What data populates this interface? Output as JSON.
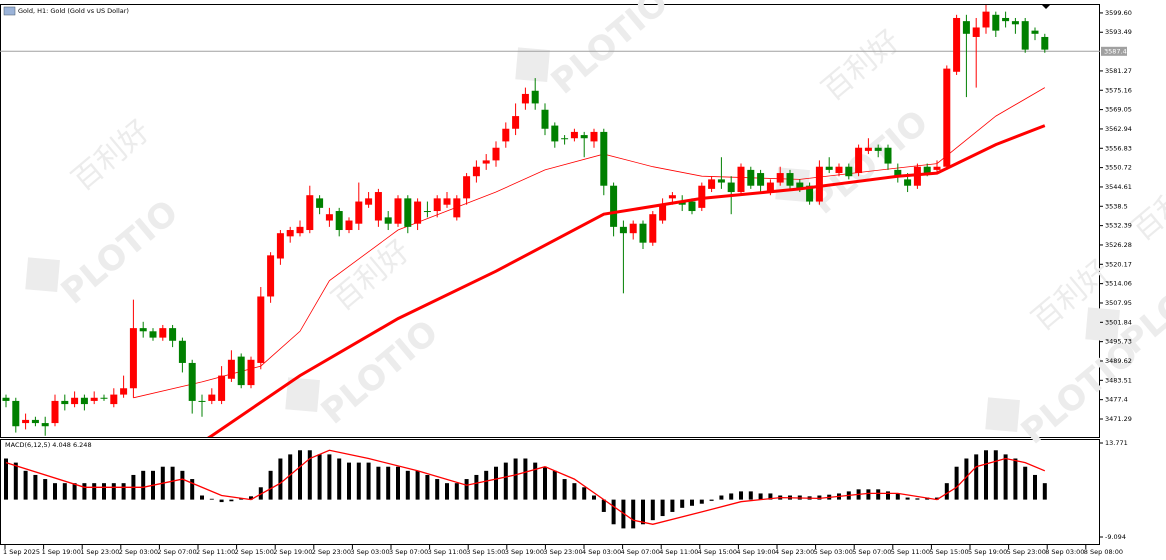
{
  "chart_data": {
    "type": "candlestick",
    "title": "Gold, H1:  Gold (Gold vs US Dollar)",
    "watermark": {
      "brand": "PLOTIO",
      "cn": "百利好"
    },
    "current_price": {
      "value": 3587.47,
      "label": "3587.47"
    },
    "up_color": "#ff0000",
    "down_color": "#008000",
    "ylim": [
      3465.6,
      3602.1
    ],
    "yticks": [
      {
        "value": 3599.6,
        "label": "3599.60"
      },
      3593.49,
      3581.27,
      3575.16,
      3569.05,
      3562.94,
      3556.83,
      3550.72,
      3544.61,
      3538.5,
      3532.39,
      3526.28,
      3520.17,
      3514.06,
      3507.95,
      3501.84,
      3495.73,
      3489.62,
      3483.51,
      3477.4,
      3471.29
    ],
    "time_labels": [
      "1 Sep 2025",
      "1 Sep 19:00",
      "1 Sep 23:00",
      "2 Sep 03:00",
      "2 Sep 07:00",
      "2 Sep 11:00",
      "2 Sep 15:00",
      "2 Sep 19:00",
      "2 Sep 23:00",
      "3 Sep 03:00",
      "3 Sep 07:00",
      "3 Sep 11:00",
      "3 Sep 15:00",
      "3 Sep 19:00",
      "3 Sep 23:00",
      "4 Sep 03:00",
      "4 Sep 07:00",
      "4 Sep 11:00",
      "4 Sep 15:00",
      "4 Sep 19:00",
      "4 Sep 23:00",
      "5 Sep 03:00",
      "5 Sep 07:00",
      "5 Sep 11:00",
      "5 Sep 15:00",
      "5 Sep 19:00",
      "5 Sep 23:00",
      "8 Sep 03:00",
      "8 Sep 08:00"
    ],
    "open": [
      3478,
      3477,
      3470,
      3471,
      3470,
      3470,
      3477,
      3476,
      3478,
      3477,
      3478,
      3476,
      3479,
      3481,
      3500,
      3499,
      3497,
      3500,
      3496,
      3489,
      3477,
      3477,
      3477,
      3484,
      3491,
      3482,
      3489,
      3510,
      3522,
      3529,
      3530,
      3531,
      3541,
      3534,
      3537,
      3531,
      3533,
      3539,
      3534,
      3535,
      3533,
      3541,
      3533,
      3537,
      3537,
      3539,
      3535,
      3541,
      3548,
      3552,
      3553,
      3559,
      3563,
      3571,
      3575,
      3569,
      3564,
      3560,
      3560,
      3561,
      3559,
      3562,
      3545,
      3532,
      3530,
      3533,
      3527,
      3534,
      3541,
      3540,
      3540,
      3538,
      3544,
      3547,
      3546,
      3543,
      3550,
      3549,
      3543,
      3546,
      3549,
      3546,
      3545,
      3540,
      3551,
      3549,
      3551,
      3549,
      3556,
      3557,
      3557,
      3550,
      3547,
      3545,
      3551,
      3550,
      3551,
      3581,
      3597,
      3592,
      3595,
      3599,
      3598,
      3597,
      3597,
      3594,
      3592
    ],
    "high": [
      3479,
      3478,
      3473,
      3472,
      3472,
      3479,
      3479,
      3480,
      3479,
      3480,
      3479,
      3481,
      3485,
      3509,
      3502,
      3500,
      3501,
      3501,
      3497,
      3490,
      3479,
      3481,
      3488,
      3493,
      3492,
      3491,
      3513,
      3524,
      3531,
      3532,
      3534,
      3545,
      3542,
      3538,
      3538,
      3535,
      3546,
      3543,
      3544,
      3537,
      3542,
      3542,
      3541,
      3540,
      3542,
      3543,
      3542,
      3549,
      3553,
      3555,
      3559,
      3565,
      3571,
      3576,
      3579,
      3571,
      3565,
      3561,
      3563,
      3562,
      3563,
      3563,
      3546,
      3534,
      3534,
      3534,
      3537,
      3541,
      3543,
      3542,
      3541,
      3546,
      3548,
      3554,
      3548,
      3552,
      3551,
      3550,
      3547,
      3551,
      3550,
      3547,
      3546,
      3553,
      3554,
      3552,
      3552,
      3558,
      3560,
      3558,
      3558,
      3552,
      3549,
      3552,
      3552,
      3553,
      3583,
      3599,
      3599,
      3598,
      3603,
      3600,
      3600,
      3598,
      3598,
      3595,
      3593
    ],
    "low": [
      3475,
      3467,
      3468,
      3469,
      3466,
      3469,
      3474,
      3475,
      3474,
      3476,
      3477,
      3475,
      3478,
      3478,
      3497,
      3496,
      3496,
      3494,
      3486,
      3473,
      3472,
      3476,
      3476,
      3483,
      3481,
      3481,
      3487,
      3508,
      3520,
      3527,
      3529,
      3530,
      3536,
      3532,
      3529,
      3530,
      3531,
      3538,
      3532,
      3531,
      3532,
      3530,
      3531,
      3535,
      3535,
      3538,
      3534,
      3539,
      3546,
      3550,
      3551,
      3557,
      3561,
      3569,
      3569,
      3561,
      3557,
      3558,
      3559,
      3554,
      3557,
      3542,
      3529,
      3511,
      3528,
      3525,
      3526,
      3533,
      3539,
      3537,
      3536,
      3537,
      3543,
      3544,
      3536,
      3542,
      3544,
      3543,
      3542,
      3545,
      3544,
      3543,
      3539,
      3539,
      3549,
      3548,
      3547,
      3548,
      3555,
      3554,
      3550,
      3546,
      3543,
      3544,
      3548,
      3549,
      3550,
      3580,
      3573,
      3576,
      3593,
      3592,
      3595,
      3593,
      3587,
      3591,
      3587
    ],
    "close": [
      3477,
      3469,
      3471,
      3470,
      3469,
      3477,
      3476,
      3478,
      3476,
      3478,
      3478,
      3479,
      3481,
      3500,
      3499,
      3497,
      3500,
      3496,
      3489,
      3477,
      3477,
      3479,
      3485,
      3490,
      3482,
      3490,
      3510,
      3523,
      3530,
      3531,
      3532,
      3542,
      3538,
      3536,
      3531,
      3534,
      3540,
      3541,
      3543,
      3533,
      3541,
      3532,
      3540,
      3537,
      3541,
      3541,
      3541,
      3548,
      3551,
      3553,
      3557,
      3563,
      3567,
      3574,
      3571,
      3563,
      3559,
      3560,
      3562,
      3560,
      3562,
      3545,
      3532,
      3530,
      3533,
      3527,
      3536,
      3539,
      3542,
      3539,
      3537,
      3545,
      3547,
      3546,
      3543,
      3551,
      3545,
      3545,
      3546,
      3549,
      3545,
      3544,
      3540,
      3551,
      3550,
      3551,
      3548,
      3557,
      3557,
      3556,
      3552,
      3548,
      3545,
      3551,
      3549,
      3551,
      3582,
      3598,
      3593,
      3595,
      3600,
      3594,
      3597,
      3596,
      3588,
      3593,
      3588
    ],
    "ma_slow": {
      "color": "#ff0000",
      "x": [
        20,
        21,
        30,
        40,
        50,
        61,
        71,
        81,
        91,
        95,
        101,
        106
      ],
      "values": [
        3464,
        3466,
        3485,
        3503,
        3518,
        3536,
        3541,
        3544,
        3548,
        3549,
        3558,
        3564
      ]
    },
    "ma_fast": {
      "color": "#ff0000",
      "x": [
        13,
        20,
        26,
        30,
        33,
        40,
        50,
        55,
        61,
        66,
        71,
        81,
        91,
        95,
        101,
        106
      ],
      "values": [
        3478,
        3483,
        3488,
        3499,
        3515,
        3531,
        3543,
        3550,
        3555,
        3551,
        3548,
        3547,
        3550.6,
        3552,
        3567,
        3576
      ]
    },
    "macd": {
      "label": "MACD(6,12,5) 4.048 6.248",
      "ylim": [
        -11.04,
        14.5
      ],
      "yticks": [
        13.771,
        -9.094
      ],
      "color": "#000000",
      "signal_color": "#ff0000",
      "histogram": [
        10,
        9,
        7,
        6,
        5,
        4,
        4,
        4,
        4,
        4,
        4,
        4,
        4,
        6,
        7,
        7,
        8,
        8,
        7,
        5,
        1,
        0.2,
        -0.6,
        -0.4,
        0.3,
        0.8,
        3,
        7,
        10,
        11,
        12,
        12,
        11,
        11,
        10,
        9,
        9,
        9,
        8,
        8,
        8,
        7,
        7,
        6,
        5,
        4,
        4,
        5,
        6,
        7,
        8,
        9,
        10,
        10,
        9,
        8,
        7,
        5,
        4,
        3,
        1,
        -3,
        -6,
        -7,
        -7,
        -6,
        -5,
        -4,
        -3,
        -2,
        -1.5,
        -1,
        -0.3,
        1,
        1.5,
        2,
        2,
        1.5,
        1.5,
        1,
        1,
        1,
        0.8,
        1,
        1.2,
        1.5,
        2,
        2.5,
        2.5,
        2.5,
        2,
        1.5,
        0.5,
        0.3,
        0.5,
        0.5,
        4,
        8,
        10,
        11,
        12,
        12,
        11,
        10,
        8,
        6,
        4
      ],
      "signal": {
        "x": [
          0,
          8,
          14,
          18,
          22,
          25,
          28,
          31,
          33,
          37,
          42,
          47,
          52,
          55,
          58,
          61,
          64,
          66,
          71,
          75,
          79,
          83,
          88,
          91,
          95,
          97,
          99,
          102,
          104,
          106
        ],
        "values": [
          9,
          3,
          3,
          5,
          1,
          0,
          4,
          10,
          12,
          10,
          7,
          3.5,
          6,
          8,
          5,
          0,
          -5,
          -6,
          -3,
          -0.5,
          0.5,
          0.3,
          1.5,
          1.5,
          0,
          3,
          8,
          10,
          9,
          7
        ]
      }
    }
  }
}
